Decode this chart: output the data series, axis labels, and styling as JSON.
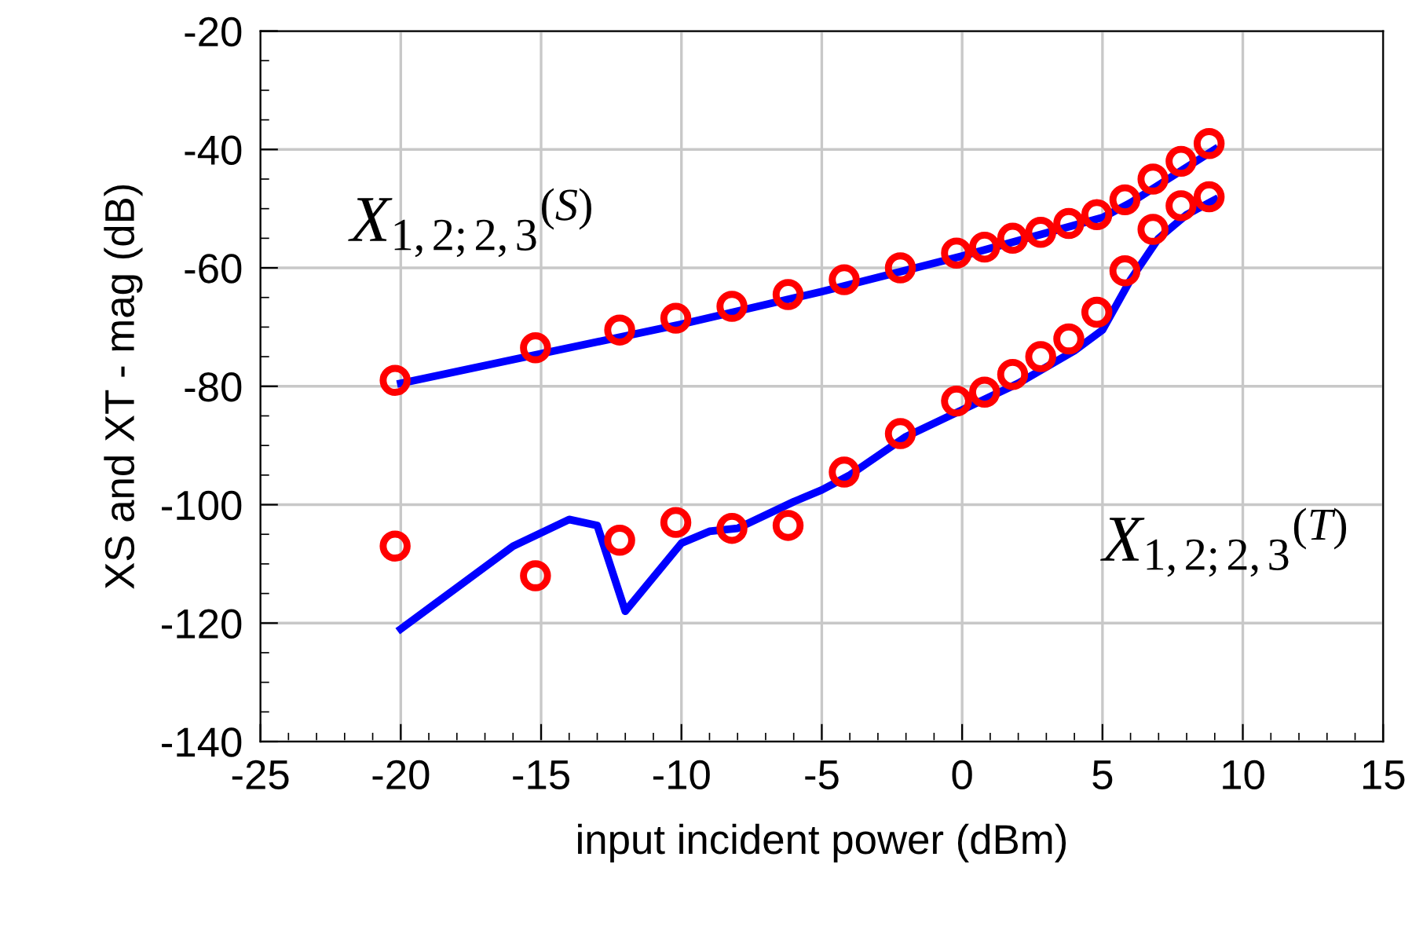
{
  "chart_data": {
    "type": "scatter",
    "xlabel": "input incident power (dBm)",
    "ylabel": "XS and XT - mag (dB)",
    "xlim": [
      -25,
      15
    ],
    "xticks": [
      -25,
      -20,
      -15,
      -10,
      -5,
      0,
      5,
      10,
      15
    ],
    "ylim": [
      -140,
      -20
    ],
    "yticks": [
      -140,
      -120,
      -100,
      -80,
      -60,
      -40,
      -20
    ],
    "grid": true,
    "series": [
      {
        "name": "X$_{1,2;2,3}$$^{(S)}$",
        "marker": "circle",
        "color": "#ff0000",
        "x": [
          -20.2,
          -15.2,
          -12.2,
          -10.2,
          -8.2,
          -6.2,
          -4.2,
          -2.2,
          -0.2,
          0.8,
          1.8,
          2.8,
          3.8,
          4.8,
          5.8,
          6.8,
          7.8,
          8.8
        ],
        "values": [
          -79,
          -73.5,
          -70.5,
          -68.5,
          -66.5,
          -64.5,
          -62,
          -60,
          -57.5,
          -56.5,
          -55,
          -54,
          -52.5,
          -51,
          -48.5,
          -45,
          -42,
          -39
        ]
      },
      {
        "name": "X$_{1,2;2,3}$$^{(T)}$",
        "marker": "circle",
        "color": "#ff0000",
        "x": [
          -20.2,
          -15.2,
          -12.2,
          -10.2,
          -8.2,
          -6.2,
          -4.2,
          -2.2,
          -0.2,
          0.8,
          1.8,
          2.8,
          3.8,
          4.8,
          5.8,
          6.8,
          7.8,
          8.8
        ],
        "values": [
          -107,
          -112,
          -106,
          -103,
          -104,
          -103.5,
          -94.5,
          -88,
          -82.5,
          -81,
          -78,
          -75,
          -72,
          -67.5,
          -60.5,
          -53.5,
          -49.5,
          -48
        ]
      },
      {
        "type": "line",
        "color": "#0000ff",
        "x": [
          -20,
          -15,
          -10,
          -5,
          0,
          5,
          6,
          7,
          8,
          9
        ],
        "values": [
          -79.5,
          -74.5,
          -69.5,
          -64,
          -58,
          -51.5,
          -49,
          -46,
          -43,
          -40
        ]
      },
      {
        "type": "line",
        "color": "#0000ff",
        "x": [
          -20,
          -18,
          -16,
          -14,
          -13,
          -12,
          -10,
          -9,
          -8,
          -6,
          -5,
          -4,
          -2,
          0,
          2,
          4,
          5,
          6,
          7,
          8,
          9
        ],
        "values": [
          -121,
          -114,
          -107,
          -102.5,
          -103.5,
          -118,
          -106.5,
          -104.5,
          -104,
          -99.5,
          -97.5,
          -95,
          -88.5,
          -84,
          -79.5,
          -74,
          -70.5,
          -62,
          -55,
          -51,
          -48.5
        ]
      }
    ]
  }
}
